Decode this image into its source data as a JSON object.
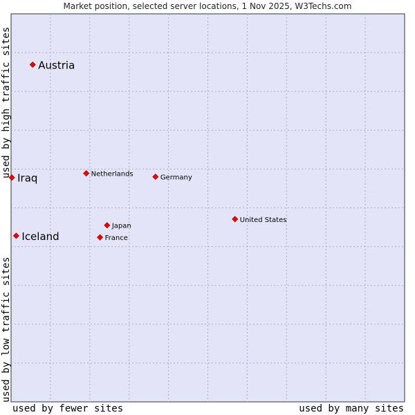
{
  "chart_data": {
    "type": "scatter",
    "title": "Market position, selected server locations, 1 Nov 2025, W3Techs.com",
    "xlabel_left": "used by fewer sites",
    "xlabel_right": "used by many sites",
    "ylabel_top": "used by high traffic sites",
    "ylabel_bottom": "used by low traffic sites",
    "xlim": [
      0,
      100
    ],
    "ylim": [
      0,
      100
    ],
    "grid": true,
    "points": [
      {
        "label": "Austria",
        "x": 5.5,
        "y": 86.9,
        "emphasis": true
      },
      {
        "label": "Iraq",
        "x": 0.2,
        "y": 57.8,
        "emphasis": true
      },
      {
        "label": "Iceland",
        "x": 1.3,
        "y": 42.8,
        "emphasis": true
      },
      {
        "label": "Netherlands",
        "x": 19.1,
        "y": 58.9,
        "emphasis": false
      },
      {
        "label": "Germany",
        "x": 36.7,
        "y": 58.0,
        "emphasis": false
      },
      {
        "label": "United States",
        "x": 56.9,
        "y": 47.1,
        "emphasis": false
      },
      {
        "label": "Japan",
        "x": 24.4,
        "y": 45.5,
        "emphasis": false
      },
      {
        "label": "France",
        "x": 22.6,
        "y": 42.4,
        "emphasis": false
      }
    ]
  }
}
